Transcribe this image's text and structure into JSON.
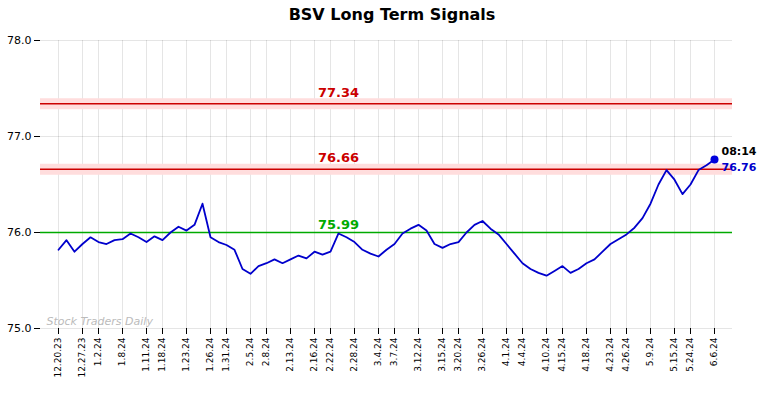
{
  "chart_data": {
    "type": "line",
    "title": "BSV Long Term Signals",
    "categories": [
      "12.20.23",
      null,
      null,
      "12.27.23",
      null,
      "1.2.24",
      null,
      null,
      "1.8.24",
      null,
      null,
      "1.11.24",
      null,
      "1.18.24",
      null,
      null,
      "1.23.24",
      null,
      null,
      "1.26.24",
      null,
      "1.31.24",
      null,
      null,
      "2.5.24",
      null,
      "2.8.24",
      null,
      null,
      "2.13.24",
      null,
      null,
      "2.16.24",
      null,
      "2.22.24",
      null,
      null,
      "2.28.24",
      null,
      null,
      "3.4.24",
      null,
      "3.7.24",
      null,
      null,
      "3.12.24",
      null,
      null,
      "3.15.24",
      null,
      "3.20.24",
      null,
      null,
      "3.26.24",
      null,
      null,
      "4.1.24",
      null,
      "4.4.24",
      null,
      null,
      "4.10.24",
      null,
      "4.15.24",
      null,
      null,
      "4.18.24",
      null,
      null,
      "4.23.24",
      null,
      "4.26.24",
      null,
      null,
      "5.9.24",
      null,
      null,
      "5.15.24",
      null,
      "5.24.24",
      null,
      null,
      "6.6.24"
    ],
    "values": [
      75.82,
      75.92,
      75.8,
      75.88,
      75.95,
      75.9,
      75.88,
      75.92,
      75.93,
      75.99,
      75.95,
      75.9,
      75.96,
      75.92,
      76.0,
      76.06,
      76.02,
      76.08,
      76.3,
      75.95,
      75.9,
      75.87,
      75.82,
      75.62,
      75.57,
      75.65,
      75.68,
      75.72,
      75.68,
      75.72,
      75.76,
      75.73,
      75.8,
      75.77,
      75.8,
      75.99,
      75.95,
      75.9,
      75.82,
      75.78,
      75.75,
      75.82,
      75.88,
      75.99,
      76.04,
      76.08,
      76.02,
      75.88,
      75.84,
      75.88,
      75.9,
      76.0,
      76.08,
      76.12,
      76.04,
      75.98,
      75.88,
      75.78,
      75.68,
      75.62,
      75.58,
      75.55,
      75.6,
      75.65,
      75.58,
      75.62,
      75.68,
      75.72,
      75.8,
      75.88,
      75.93,
      75.98,
      76.05,
      76.15,
      76.3,
      76.5,
      76.65,
      76.55,
      76.4,
      76.5,
      76.65,
      76.7,
      76.76
    ],
    "color": "#0000cc",
    "ylim": [
      75,
      78
    ],
    "yticks": [
      75,
      76,
      77,
      78
    ],
    "grid": true,
    "hlines": [
      {
        "y": 77.34,
        "label": "77.34",
        "color": "#cc0000",
        "band_color": "#ffdddd"
      },
      {
        "y": 76.66,
        "label": "76.66",
        "color": "#cc0000",
        "band_color": "#ffdddd"
      },
      {
        "y": 76.0,
        "label": "75.99",
        "color": "#00aa00"
      }
    ],
    "last_point": {
      "color": "#0000dd",
      "time_label": "08:14",
      "value_label": "76.76"
    },
    "watermark": {
      "text": "Stock Traders Daily",
      "color": "#bbbbbb"
    }
  }
}
